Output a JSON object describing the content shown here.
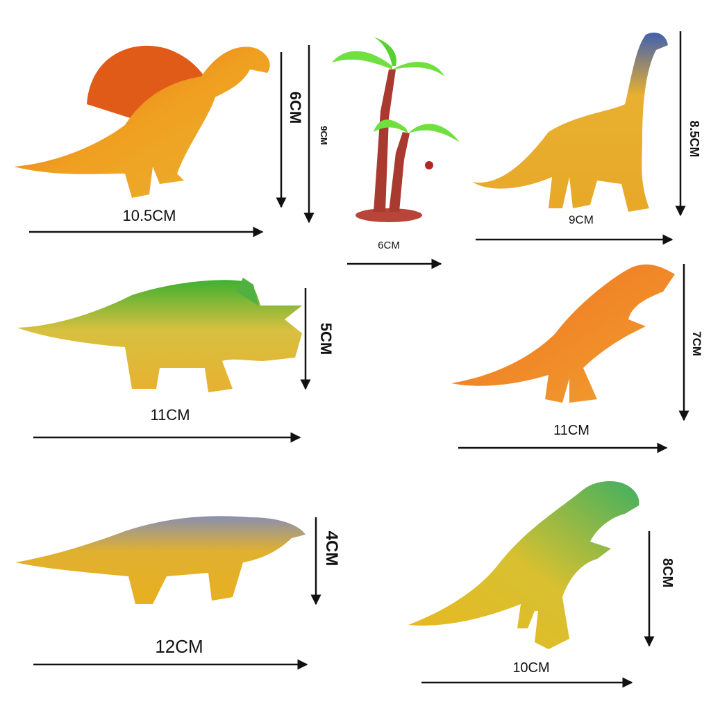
{
  "items": [
    {
      "height_label": "6CM",
      "width_label": "10.5CM"
    },
    {
      "height_label": "9CM",
      "width_label": "6CM"
    },
    {
      "height_label": "8.5CM",
      "width_label": "9CM"
    },
    {
      "height_label": "5CM",
      "width_label": "11CM"
    },
    {
      "height_label": "7CM",
      "width_label": "11CM"
    },
    {
      "height_label": "4CM",
      "width_label": "12CM"
    },
    {
      "height_label": "8CM",
      "width_label": "10CM"
    }
  ]
}
